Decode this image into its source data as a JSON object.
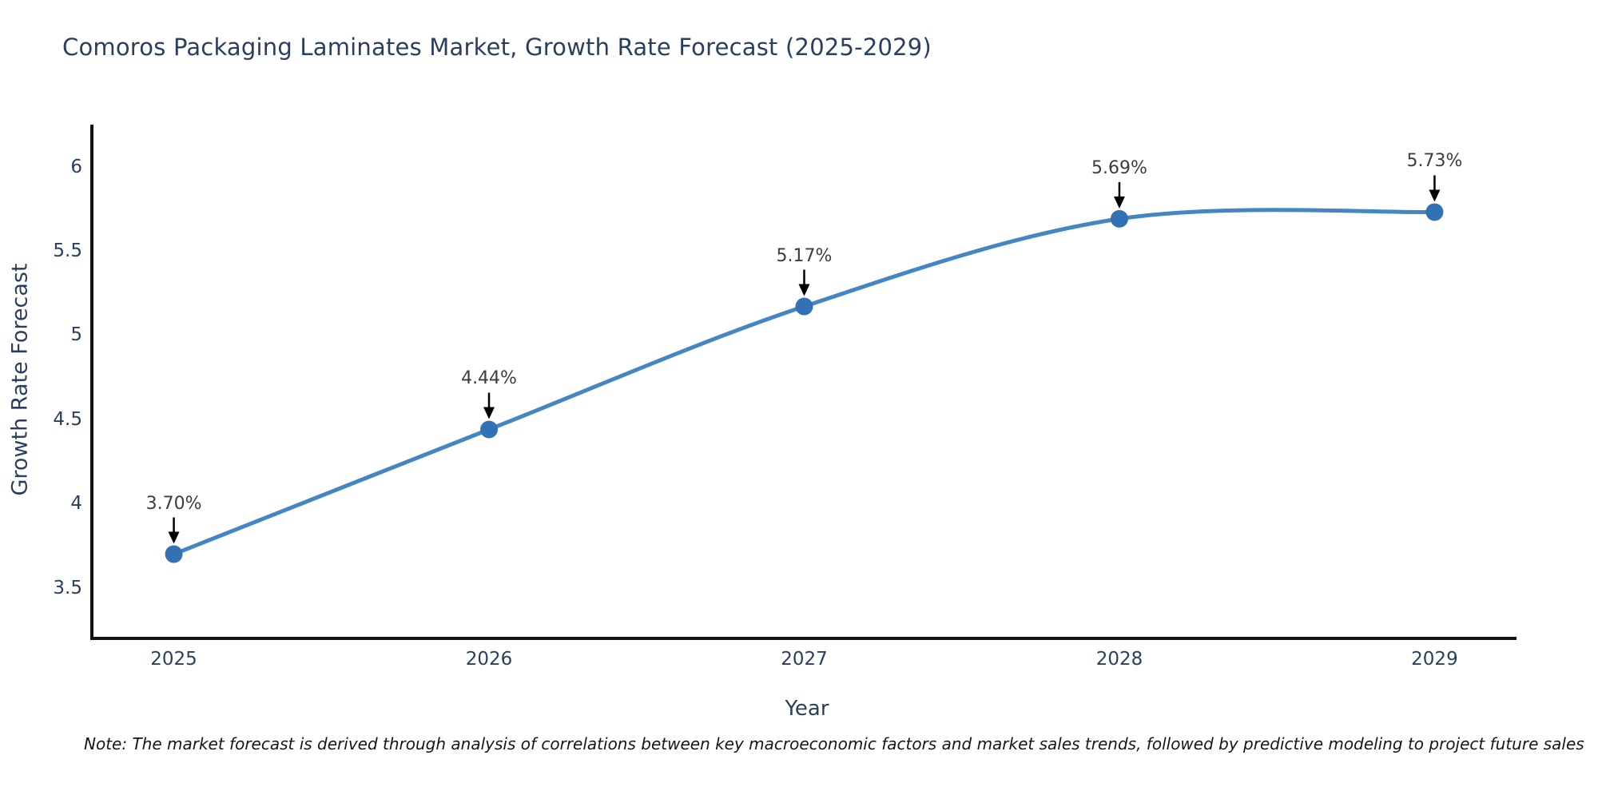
{
  "chart_data": {
    "type": "line",
    "title": "Comoros Packaging Laminates Market, Growth Rate Forecast (2025-2029)",
    "xlabel": "Year",
    "ylabel": "Growth Rate Forecast",
    "x": [
      2025,
      2026,
      2027,
      2028,
      2029
    ],
    "values": [
      3.7,
      4.44,
      5.17,
      5.69,
      5.73
    ],
    "point_labels": [
      "3.70%",
      "4.44%",
      "5.17%",
      "5.69%",
      "5.73%"
    ],
    "x_tick_labels": [
      "2025",
      "2026",
      "2027",
      "2028",
      "2029"
    ],
    "y_ticks": [
      3.5,
      4,
      4.5,
      5,
      5.5,
      6
    ],
    "y_tick_labels": [
      "3.5",
      "4",
      "4.5",
      "5",
      "5.5",
      "6"
    ],
    "xlim": [
      2024.74,
      2029.26
    ],
    "ylim": [
      3.2,
      6.23
    ],
    "line_shape": "spline",
    "grid": false,
    "legend": "none",
    "colors": {
      "line": "#4486c4",
      "marker": "#3272b4",
      "axis": "#111111",
      "text": "#2a3f5f",
      "annotation_text": "#3d3d3d",
      "annotation_arrow": "#000000"
    }
  },
  "note": {
    "text": "Note: The market forecast is derived through analysis of correlations between key macroeconomic factors and market sales trends, followed by predictive modeling to project future sales"
  }
}
